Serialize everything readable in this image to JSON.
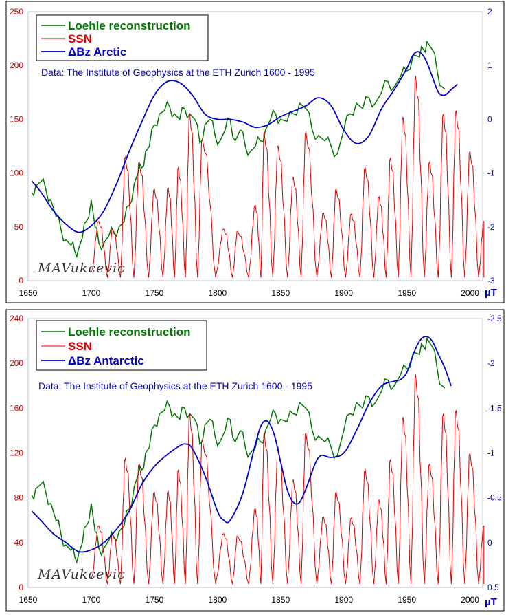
{
  "chart_data": [
    {
      "type": "line",
      "legend_placement": "top-left",
      "note": "Data:  The Institute of Geophysics at the ETH Zurich 1600 - 1995",
      "unit": "µT",
      "signature": "MAVukcevic",
      "x_range": [
        1650,
        2010
      ],
      "x_ticks": [
        1650,
        1700,
        1750,
        1800,
        1850,
        1900,
        1950,
        2000
      ],
      "y_left_range": [
        0,
        250
      ],
      "y_left_ticks": [
        0,
        50,
        100,
        150,
        200,
        250
      ],
      "y_right_range": [
        -3,
        2
      ],
      "y_right_ticks": [
        -3,
        -2,
        -1,
        0,
        1,
        2
      ],
      "y_right_tick_labels": [
        "-3",
        "-2",
        "-1",
        "0",
        "1",
        "2"
      ],
      "grid": false,
      "series": [
        {
          "name": "Loehle reconstruction",
          "color": "#007700",
          "axis": "left",
          "style": "jagged",
          "x": [
            1653,
            1656,
            1660,
            1664,
            1668,
            1672,
            1676,
            1680,
            1684,
            1687,
            1690,
            1693,
            1696,
            1700,
            1703,
            1706,
            1710,
            1714,
            1718,
            1722,
            1726,
            1730,
            1734,
            1737,
            1740,
            1743,
            1746,
            1750,
            1754,
            1758,
            1762,
            1766,
            1770,
            1774,
            1778,
            1782,
            1786,
            1790,
            1794,
            1798,
            1802,
            1806,
            1810,
            1814,
            1818,
            1822,
            1826,
            1830,
            1834,
            1838,
            1842,
            1846,
            1850,
            1855,
            1860,
            1865,
            1870,
            1875,
            1880,
            1885,
            1890,
            1895,
            1900,
            1905,
            1910,
            1915,
            1920,
            1925,
            1930,
            1935,
            1940,
            1945,
            1950,
            1955,
            1960,
            1963,
            1966,
            1970,
            1974,
            1978,
            1980
          ],
          "y": [
            82,
            88,
            92,
            85,
            75,
            60,
            48,
            38,
            33,
            27,
            30,
            40,
            55,
            75,
            50,
            35,
            35,
            42,
            45,
            50,
            55,
            70,
            90,
            100,
            105,
            120,
            125,
            145,
            155,
            158,
            162,
            155,
            150,
            160,
            155,
            150,
            128,
            145,
            150,
            135,
            130,
            140,
            150,
            130,
            140,
            125,
            120,
            125,
            130,
            140,
            150,
            155,
            150,
            148,
            155,
            165,
            160,
            140,
            135,
            130,
            125,
            118,
            140,
            155,
            165,
            160,
            170,
            165,
            175,
            185,
            180,
            190,
            195,
            210,
            208,
            215,
            222,
            215,
            195,
            180,
            178
          ]
        },
        {
          "name": "SSN",
          "color": "#dd0000",
          "axis": "left",
          "style": "cycles",
          "cycle_peaks": [
            [
              1706,
              55
            ],
            [
              1717,
              48
            ],
            [
              1727,
              115
            ],
            [
              1738,
              110
            ],
            [
              1750,
              85
            ],
            [
              1761,
              86
            ],
            [
              1769,
              105
            ],
            [
              1778,
              155
            ],
            [
              1788,
              132
            ],
            [
              1805,
              48
            ],
            [
              1816,
              46
            ],
            [
              1830,
              70
            ],
            [
              1837,
              138
            ],
            [
              1848,
              125
            ],
            [
              1860,
              96
            ],
            [
              1870,
              138
            ],
            [
              1884,
              63
            ],
            [
              1894,
              85
            ],
            [
              1906,
              62
            ],
            [
              1917,
              105
            ],
            [
              1928,
              78
            ],
            [
              1937,
              114
            ],
            [
              1947,
              152
            ],
            [
              1957,
              190
            ],
            [
              1968,
              110
            ],
            [
              1979,
              155
            ],
            [
              1989,
              158
            ],
            [
              2000,
              120
            ],
            [
              2011,
              55
            ]
          ],
          "x_range": [
            1700,
            2011
          ]
        },
        {
          "name": "ΔBz Arctic",
          "color": "#0000cc",
          "axis": "right",
          "style": "smooth",
          "x": [
            1653,
            1660,
            1670,
            1680,
            1690,
            1700,
            1710,
            1720,
            1730,
            1740,
            1750,
            1760,
            1770,
            1780,
            1790,
            1800,
            1810,
            1820,
            1830,
            1840,
            1850,
            1860,
            1870,
            1880,
            1890,
            1900,
            1910,
            1920,
            1930,
            1940,
            1950,
            1955,
            1960,
            1965,
            1970,
            1975,
            1980,
            1985,
            1990
          ],
          "y": [
            -1.15,
            -1.35,
            -1.7,
            -1.95,
            -2.1,
            -1.98,
            -1.7,
            -1.2,
            -0.6,
            -0.05,
            0.45,
            0.7,
            0.68,
            0.45,
            0.1,
            0.0,
            0.0,
            -0.05,
            -0.15,
            -0.1,
            0.05,
            0.15,
            0.25,
            0.4,
            0.25,
            -0.2,
            -0.45,
            -0.3,
            0.2,
            0.55,
            0.95,
            1.2,
            1.25,
            1.1,
            0.8,
            0.5,
            0.45,
            0.55,
            0.65
          ]
        }
      ]
    },
    {
      "type": "line",
      "legend_placement": "top-left",
      "note": "Data:  The Institute of Geophysics at the ETH Zurich 1600 - 1995",
      "unit": "µT",
      "signature": "MAVukcevic",
      "x_range": [
        1650,
        2010
      ],
      "x_ticks": [
        1650,
        1700,
        1750,
        1800,
        1850,
        1900,
        1950,
        2000
      ],
      "y_left_range": [
        0,
        240
      ],
      "y_left_ticks": [
        0,
        40,
        80,
        120,
        160,
        200,
        240
      ],
      "y_right_range": [
        0.5,
        -2.5
      ],
      "y_right_ticks": [
        0.5,
        0,
        -0.5,
        -1,
        -1.5,
        -2,
        -2.5
      ],
      "y_right_tick_labels": [
        "0.5",
        "0",
        "-0.5",
        "-1",
        "-1.5",
        "-2",
        "-2.5"
      ],
      "grid": false,
      "series": [
        {
          "name": "Loehle reconstruction",
          "color": "#007700",
          "axis": "left",
          "style": "jagged",
          "x": [
            1653,
            1656,
            1660,
            1664,
            1668,
            1672,
            1676,
            1680,
            1684,
            1687,
            1690,
            1693,
            1696,
            1700,
            1703,
            1706,
            1710,
            1714,
            1718,
            1722,
            1726,
            1730,
            1734,
            1737,
            1740,
            1743,
            1746,
            1750,
            1754,
            1758,
            1762,
            1766,
            1770,
            1774,
            1778,
            1782,
            1786,
            1790,
            1794,
            1798,
            1802,
            1806,
            1810,
            1814,
            1818,
            1822,
            1826,
            1830,
            1834,
            1838,
            1842,
            1846,
            1850,
            1855,
            1860,
            1865,
            1870,
            1875,
            1880,
            1885,
            1890,
            1895,
            1900,
            1905,
            1910,
            1915,
            1920,
            1925,
            1930,
            1935,
            1940,
            1945,
            1950,
            1955,
            1960,
            1963,
            1966,
            1970,
            1974,
            1978,
            1980
          ],
          "y": [
            82,
            88,
            92,
            85,
            75,
            60,
            48,
            38,
            33,
            27,
            30,
            40,
            55,
            75,
            50,
            35,
            35,
            42,
            45,
            50,
            55,
            70,
            90,
            100,
            105,
            120,
            125,
            145,
            155,
            158,
            162,
            155,
            150,
            160,
            155,
            150,
            128,
            145,
            150,
            135,
            130,
            140,
            150,
            130,
            140,
            125,
            120,
            125,
            130,
            140,
            150,
            155,
            150,
            148,
            155,
            165,
            160,
            140,
            135,
            130,
            125,
            118,
            140,
            155,
            165,
            160,
            170,
            165,
            175,
            185,
            180,
            190,
            195,
            210,
            208,
            215,
            222,
            215,
            195,
            180,
            178
          ]
        },
        {
          "name": "SSN",
          "color": "#dd0000",
          "axis": "left",
          "style": "cycles",
          "cycle_peaks": [
            [
              1706,
              55
            ],
            [
              1717,
              48
            ],
            [
              1727,
              115
            ],
            [
              1738,
              110
            ],
            [
              1750,
              85
            ],
            [
              1761,
              86
            ],
            [
              1769,
              105
            ],
            [
              1778,
              155
            ],
            [
              1788,
              132
            ],
            [
              1805,
              48
            ],
            [
              1816,
              46
            ],
            [
              1830,
              70
            ],
            [
              1837,
              138
            ],
            [
              1848,
              125
            ],
            [
              1860,
              96
            ],
            [
              1870,
              138
            ],
            [
              1884,
              63
            ],
            [
              1894,
              85
            ],
            [
              1906,
              62
            ],
            [
              1917,
              105
            ],
            [
              1928,
              78
            ],
            [
              1937,
              114
            ],
            [
              1947,
              152
            ],
            [
              1957,
              190
            ],
            [
              1968,
              110
            ],
            [
              1979,
              155
            ],
            [
              1989,
              158
            ],
            [
              2000,
              120
            ],
            [
              2011,
              55
            ]
          ],
          "x_range": [
            1700,
            2011
          ]
        },
        {
          "name": "ΔBz Antarctic",
          "color": "#0000cc",
          "axis": "right",
          "style": "smooth",
          "x": [
            1653,
            1660,
            1670,
            1680,
            1690,
            1700,
            1710,
            1720,
            1730,
            1740,
            1750,
            1760,
            1770,
            1775,
            1780,
            1790,
            1800,
            1805,
            1810,
            1820,
            1830,
            1835,
            1840,
            1845,
            1850,
            1855,
            1860,
            1865,
            1870,
            1880,
            1890,
            1900,
            1910,
            1920,
            1930,
            1940,
            1945,
            1950,
            1955,
            1960,
            1965,
            1970,
            1975,
            1980,
            1985
          ],
          "y": [
            -0.35,
            -0.25,
            -0.1,
            0.0,
            0.1,
            0.08,
            0.0,
            -0.15,
            -0.35,
            -0.65,
            -0.85,
            -0.98,
            -1.08,
            -1.1,
            -1.05,
            -0.75,
            -0.35,
            -0.25,
            -0.25,
            -0.55,
            -1.1,
            -1.32,
            -1.35,
            -1.2,
            -0.9,
            -0.6,
            -0.45,
            -0.45,
            -0.6,
            -0.95,
            -0.95,
            -1.0,
            -1.25,
            -1.55,
            -1.75,
            -1.8,
            -1.82,
            -1.9,
            -2.1,
            -2.25,
            -2.3,
            -2.25,
            -2.1,
            -1.95,
            -1.75
          ]
        }
      ]
    }
  ]
}
